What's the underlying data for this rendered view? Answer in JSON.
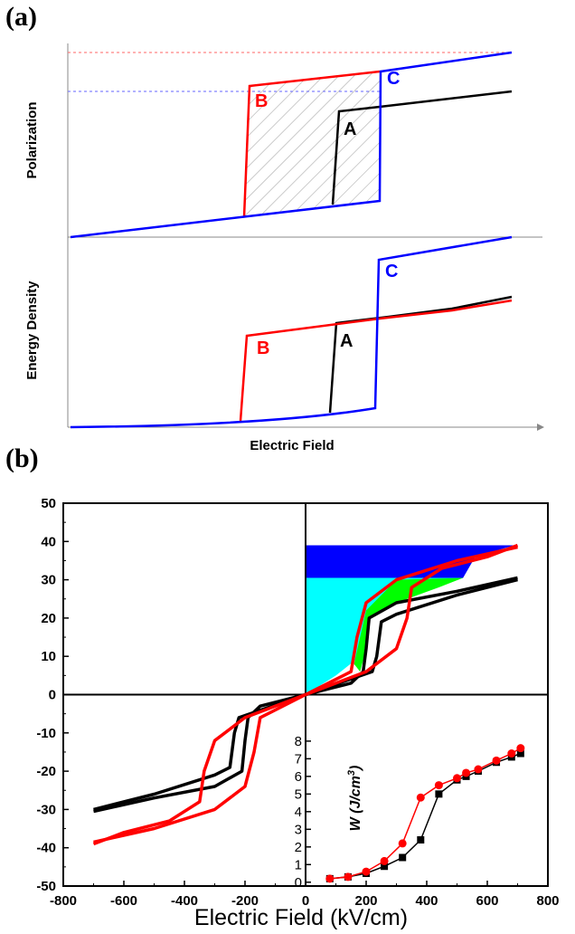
{
  "panel_a": {
    "label": "(a)",
    "top": {
      "ylabel": "Polarization",
      "curves": [
        {
          "name": "A",
          "color": "#000000"
        },
        {
          "name": "B",
          "color": "#ff0000"
        },
        {
          "name": "C",
          "color": "#0000ff"
        }
      ]
    },
    "bottom": {
      "ylabel": "Energy Density",
      "curves": [
        {
          "name": "A",
          "color": "#000000"
        },
        {
          "name": "B",
          "color": "#ff0000"
        },
        {
          "name": "C",
          "color": "#0000ff"
        }
      ]
    },
    "xlabel": "Electric Field"
  },
  "panel_b": {
    "label": "(b)",
    "xlabel": "Electric Field (kV/cm)",
    "inset_ylabel": "W (J/cm",
    "inset_ylabel_sup": "3",
    "inset_ylabel_close": ")"
  },
  "chart_data": [
    {
      "type": "line",
      "title": "",
      "xlabel": "Electric Field (kV/cm)",
      "ylabel": "",
      "xlim": [
        -800,
        800
      ],
      "ylim": [
        -50,
        50
      ],
      "x_ticks": [
        -800,
        -600,
        -400,
        -200,
        0,
        200,
        400,
        600,
        800
      ],
      "y_ticks": [
        -50,
        -40,
        -30,
        -20,
        -10,
        0,
        10,
        20,
        30,
        40,
        50
      ],
      "series": [
        {
          "color": "#000000",
          "upper_branch": [
            [
              -700,
              -30
            ],
            [
              -600,
              -28.5
            ],
            [
              -500,
              -27
            ],
            [
              -460,
              -25.5
            ],
            [
              -445,
              -15
            ],
            [
              -430,
              -10
            ],
            [
              -300,
              -6
            ],
            [
              -100,
              -2
            ],
            [
              100,
              2
            ],
            [
              300,
              6
            ],
            [
              420,
              10
            ],
            [
              440,
              15
            ],
            [
              450,
              25
            ],
            [
              500,
              27
            ],
            [
              600,
              28.5
            ],
            [
              700,
              30.5
            ]
          ],
          "lower_branch": [
            [
              -700,
              -30
            ],
            [
              -500,
              -26
            ],
            [
              -300,
              -21
            ],
            [
              -250,
              -19
            ],
            [
              -235,
              -10
            ],
            [
              -220,
              -6
            ],
            [
              0,
              0
            ],
            [
              150,
              3
            ],
            [
              190,
              6
            ],
            [
              200,
              12
            ],
            [
              210,
              20
            ],
            [
              300,
              24
            ],
            [
              500,
              27
            ],
            [
              700,
              30.5
            ]
          ]
        },
        {
          "color": "#ff0000",
          "upper_branch": [
            [
              -700,
              -38.5
            ],
            [
              -550,
              -35
            ],
            [
              -450,
              -32
            ],
            [
              -390,
              -28
            ],
            [
              -375,
              -18
            ],
            [
              -340,
              -10
            ],
            [
              -200,
              -5
            ],
            [
              0,
              0
            ],
            [
              150,
              5
            ],
            [
              170,
              10
            ],
            [
              200,
              22
            ],
            [
              300,
              30
            ],
            [
              500,
              35
            ],
            [
              700,
              39
            ]
          ],
          "lower_branch": [
            [
              -700,
              -38.5
            ],
            [
              -500,
              -35
            ],
            [
              -300,
              -30
            ],
            [
              -200,
              -24
            ],
            [
              -170,
              -15
            ],
            [
              -150,
              -6
            ],
            [
              0,
              0
            ],
            [
              200,
              6
            ],
            [
              300,
              12
            ],
            [
              335,
              20
            ],
            [
              350,
              28
            ],
            [
              450,
              33
            ],
            [
              600,
              36
            ],
            [
              700,
              39
            ]
          ]
        }
      ],
      "filled_regions": [
        {
          "color": "#0000ff",
          "y_range": [
            30.5,
            39
          ]
        },
        {
          "color": "#00ffff",
          "y_range": [
            0,
            30.5
          ]
        },
        {
          "color": "#00ff00",
          "description_from_picture": ""
        }
      ]
    },
    {
      "type": "line",
      "title": "",
      "xlabel": "",
      "ylabel": "W (J/cm3)",
      "x": [
        80,
        140,
        200,
        260,
        320,
        380,
        440,
        500,
        530,
        570,
        630,
        680,
        710
      ],
      "xlim": [
        0,
        800
      ],
      "ylim": [
        0,
        9
      ],
      "y_ticks": [
        0,
        1,
        2,
        3,
        4,
        5,
        6,
        7,
        8
      ],
      "series": [
        {
          "color": "#000000",
          "marker": "square",
          "values": [
            0.2,
            0.3,
            0.5,
            0.9,
            1.4,
            2.4,
            5.0,
            5.8,
            6.0,
            6.3,
            6.8,
            7.1,
            7.3
          ]
        },
        {
          "color": "#ff0000",
          "marker": "circle",
          "values": [
            0.2,
            0.3,
            0.6,
            1.2,
            2.2,
            4.8,
            5.5,
            5.9,
            6.2,
            6.4,
            6.9,
            7.3,
            7.6
          ]
        }
      ]
    }
  ]
}
